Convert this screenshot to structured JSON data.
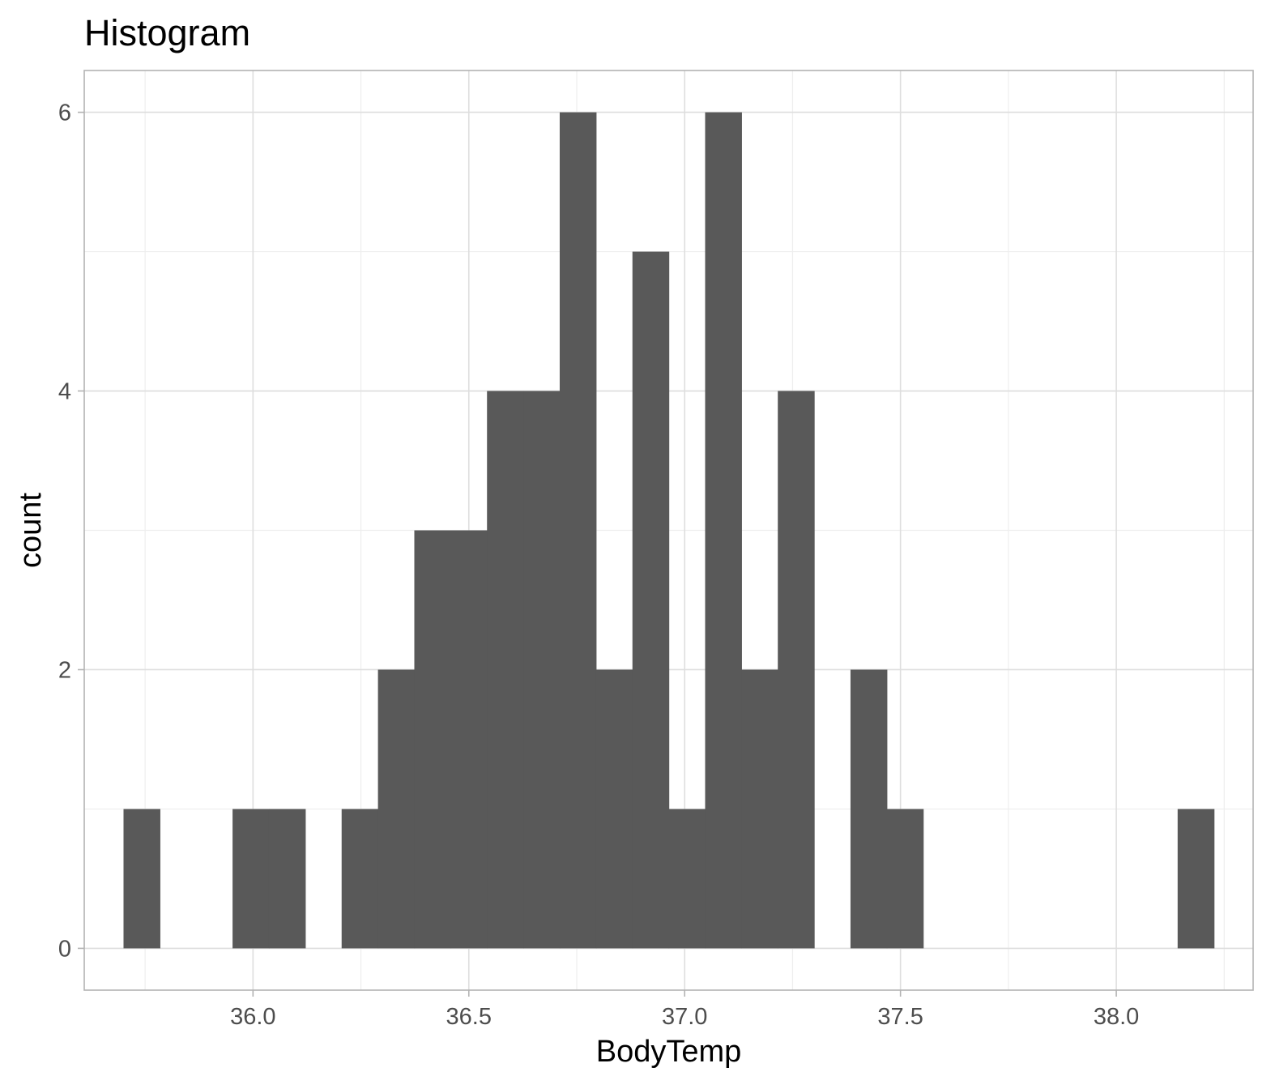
{
  "chart_data": {
    "type": "bar",
    "title": "Histogram",
    "xlabel": "BodyTemp",
    "ylabel": "count",
    "bin_width": 0.0842,
    "bins": [
      {
        "x": 35.7421,
        "count": 1
      },
      {
        "x": 35.8263,
        "count": 0
      },
      {
        "x": 35.9105,
        "count": 0
      },
      {
        "x": 35.9947,
        "count": 1
      },
      {
        "x": 36.0789,
        "count": 1
      },
      {
        "x": 36.1632,
        "count": 0
      },
      {
        "x": 36.2474,
        "count": 1
      },
      {
        "x": 36.3316,
        "count": 2
      },
      {
        "x": 36.4158,
        "count": 3
      },
      {
        "x": 36.5,
        "count": 3
      },
      {
        "x": 36.5842,
        "count": 4
      },
      {
        "x": 36.6684,
        "count": 4
      },
      {
        "x": 36.7526,
        "count": 6
      },
      {
        "x": 36.8368,
        "count": 2
      },
      {
        "x": 36.9211,
        "count": 5
      },
      {
        "x": 37.0053,
        "count": 1
      },
      {
        "x": 37.0895,
        "count": 6
      },
      {
        "x": 37.1737,
        "count": 2
      },
      {
        "x": 37.2579,
        "count": 4
      },
      {
        "x": 37.3421,
        "count": 0
      },
      {
        "x": 37.4263,
        "count": 2
      },
      {
        "x": 37.5105,
        "count": 1
      },
      {
        "x": 37.5947,
        "count": 0
      },
      {
        "x": 37.6789,
        "count": 0
      },
      {
        "x": 37.7632,
        "count": 0
      },
      {
        "x": 37.8474,
        "count": 0
      },
      {
        "x": 37.9316,
        "count": 0
      },
      {
        "x": 38.0158,
        "count": 0
      },
      {
        "x": 38.1,
        "count": 0
      },
      {
        "x": 38.1842,
        "count": 1
      }
    ],
    "x_ticks": [
      36.0,
      36.5,
      37.0,
      37.5,
      38.0
    ],
    "x_tick_labels": [
      "36.0",
      "36.5",
      "37.0",
      "37.5",
      "38.0"
    ],
    "y_ticks": [
      0,
      2,
      4,
      6
    ],
    "y_tick_labels": [
      "0",
      "2",
      "4",
      "6"
    ],
    "xlim": [
      35.609,
      38.317
    ],
    "ylim": [
      -0.3,
      6.3
    ],
    "grid": true,
    "legend": "none",
    "colors": {
      "bar": "#595959",
      "grid_major": "#dedede",
      "grid_minor": "#eeeeee",
      "panel_border": "#b3b3b3",
      "tick_text": "#4d4d4d",
      "text": "#000000"
    }
  }
}
